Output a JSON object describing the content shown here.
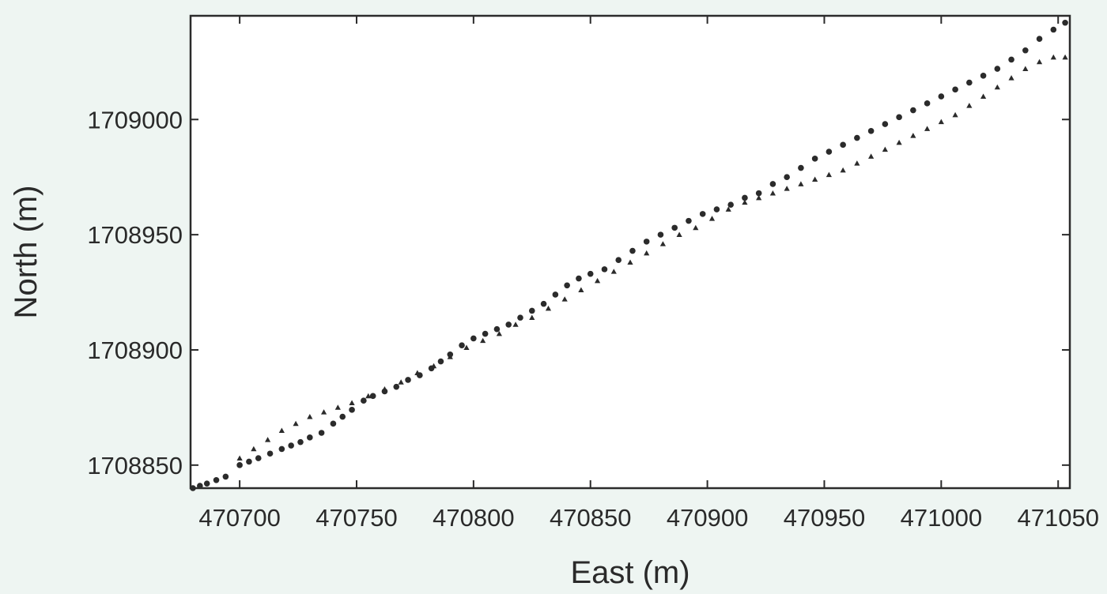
{
  "chart_data": {
    "type": "scatter",
    "title": "",
    "xlabel": "East (m)",
    "ylabel": "North (m)",
    "xlim": [
      470679,
      471055
    ],
    "ylim": [
      1708840,
      1709045
    ],
    "xticks": [
      470700,
      470750,
      470800,
      470850,
      470900,
      470950,
      471000,
      471050
    ],
    "yticks": [
      1708850,
      1708900,
      1708950,
      1709000
    ],
    "xtick_labels": [
      "470700",
      "470750",
      "470800",
      "470850",
      "470900",
      "470950",
      "471000",
      "471050"
    ],
    "ytick_labels": [
      "1708850",
      "1708900",
      "1708950",
      "1709000"
    ],
    "grid": false,
    "marker_color": "#2b2b2b",
    "background_color": "#ffffff",
    "series": [
      {
        "marker": "dot",
        "x": [
          470680,
          470683,
          470686,
          470690,
          470694,
          470700,
          470704,
          470708,
          470713,
          470718,
          470722,
          470726,
          470730,
          470735,
          470740,
          470744,
          470748,
          470753,
          470757,
          470762,
          470767,
          470772,
          470777,
          470782,
          470786,
          470790,
          470795,
          470800,
          470805,
          470810,
          470815,
          470820,
          470825,
          470830,
          470835,
          470840,
          470845,
          470850,
          470856,
          470862,
          470868,
          470874,
          470880,
          470886,
          470892,
          470898,
          470904,
          470910,
          470916,
          470922,
          470928,
          470934,
          470940,
          470946,
          470952,
          470958,
          470964,
          470970,
          470976,
          470982,
          470988,
          470994,
          471000,
          471006,
          471012,
          471018,
          471024,
          471030,
          471036,
          471042,
          471048,
          471053
        ],
        "y": [
          1708840,
          1708841,
          1708842,
          1708843.5,
          1708845,
          1708850,
          1708851.5,
          1708853,
          1708855,
          1708857,
          1708858.5,
          1708860,
          1708862,
          1708864,
          1708868,
          1708871,
          1708874,
          1708878,
          1708880,
          1708882,
          1708884,
          1708887,
          1708889,
          1708892,
          1708895,
          1708898,
          1708902,
          1708905,
          1708907,
          1708909,
          1708911,
          1708914,
          1708917,
          1708920,
          1708924,
          1708928,
          1708931,
          1708933,
          1708935,
          1708939,
          1708943,
          1708947,
          1708950,
          1708953,
          1708956,
          1708959,
          1708961,
          1708963,
          1708966,
          1708968,
          1708972,
          1708975,
          1708979,
          1708983,
          1708986,
          1708989,
          1708992,
          1708995,
          1708998,
          1709001,
          1709004,
          1709007,
          1709010,
          1709013,
          1709016,
          1709019,
          1709022,
          1709026,
          1709030,
          1709035,
          1709039,
          1709042
        ]
      },
      {
        "marker": "triangle",
        "x": [
          470700,
          470706,
          470712,
          470718,
          470724,
          470730,
          470736,
          470742,
          470748,
          470755,
          470762,
          470769,
          470776,
          470783,
          470790,
          470797,
          470804,
          470811,
          470818,
          470825,
          470832,
          470839,
          470846,
          470853,
          470860,
          470867,
          470874,
          470881,
          470888,
          470895,
          470902,
          470909,
          470916,
          470922,
          470928,
          470934,
          470940,
          470946,
          470952,
          470958,
          470964,
          470970,
          470976,
          470982,
          470988,
          470994,
          471000,
          471006,
          471012,
          471018,
          471024,
          471030,
          471036,
          471042,
          471048,
          471053
        ],
        "y": [
          1708853,
          1708857,
          1708861,
          1708865,
          1708868,
          1708871,
          1708873,
          1708875,
          1708877,
          1708880,
          1708883,
          1708886,
          1708890,
          1708893,
          1708897,
          1708901,
          1708904,
          1708907,
          1708911,
          1708914,
          1708918,
          1708922,
          1708926,
          1708930,
          1708934,
          1708938,
          1708942,
          1708946,
          1708950,
          1708953,
          1708957,
          1708961,
          1708964,
          1708966,
          1708968,
          1708970,
          1708972,
          1708974,
          1708976,
          1708978,
          1708981,
          1708984,
          1708987,
          1708990,
          1708993,
          1708996,
          1708999,
          1709002,
          1709006,
          1709010,
          1709014,
          1709018,
          1709022,
          1709025,
          1709027,
          1709027
        ]
      }
    ]
  }
}
